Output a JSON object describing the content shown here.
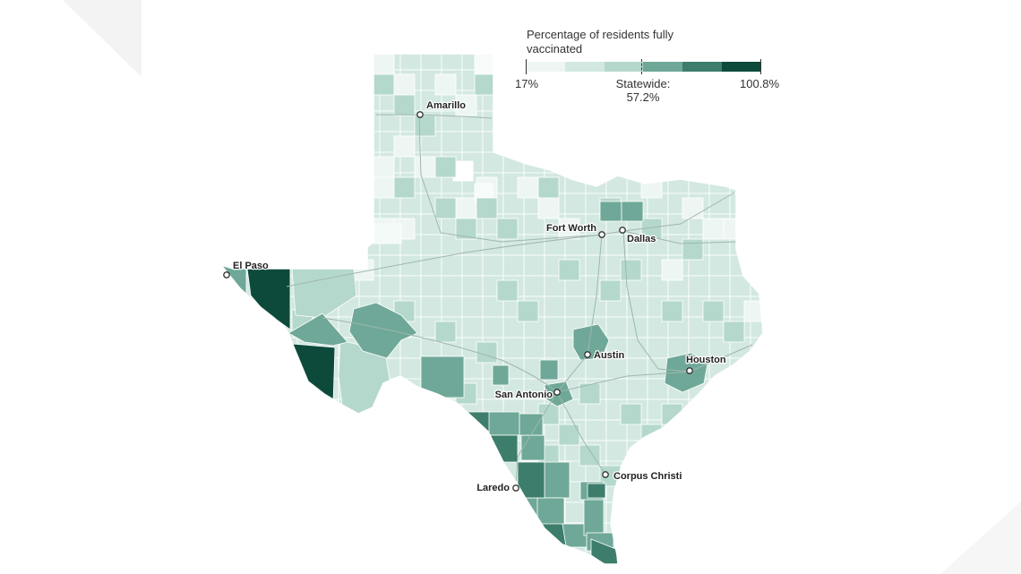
{
  "legend": {
    "title": "Percentage of residents fully vaccinated",
    "min_label": "17%",
    "statewide_label": "Statewide:",
    "statewide_value": "57.2%",
    "max_label": "100.8%",
    "scale_min": 17,
    "scale_max": 100.8,
    "statewide": 57.2,
    "colors": [
      "#eef6f3",
      "#d3e8e1",
      "#b5d8cc",
      "#6fa898",
      "#3d7d6b",
      "#0d4a3c"
    ]
  },
  "cities": [
    {
      "name": "Amarillo"
    },
    {
      "name": "Fort Worth"
    },
    {
      "name": "Dallas"
    },
    {
      "name": "El Paso"
    },
    {
      "name": "Austin"
    },
    {
      "name": "Houston"
    },
    {
      "name": "San Antonio"
    },
    {
      "name": "Corpus Christi"
    },
    {
      "name": "Laredo"
    }
  ]
}
